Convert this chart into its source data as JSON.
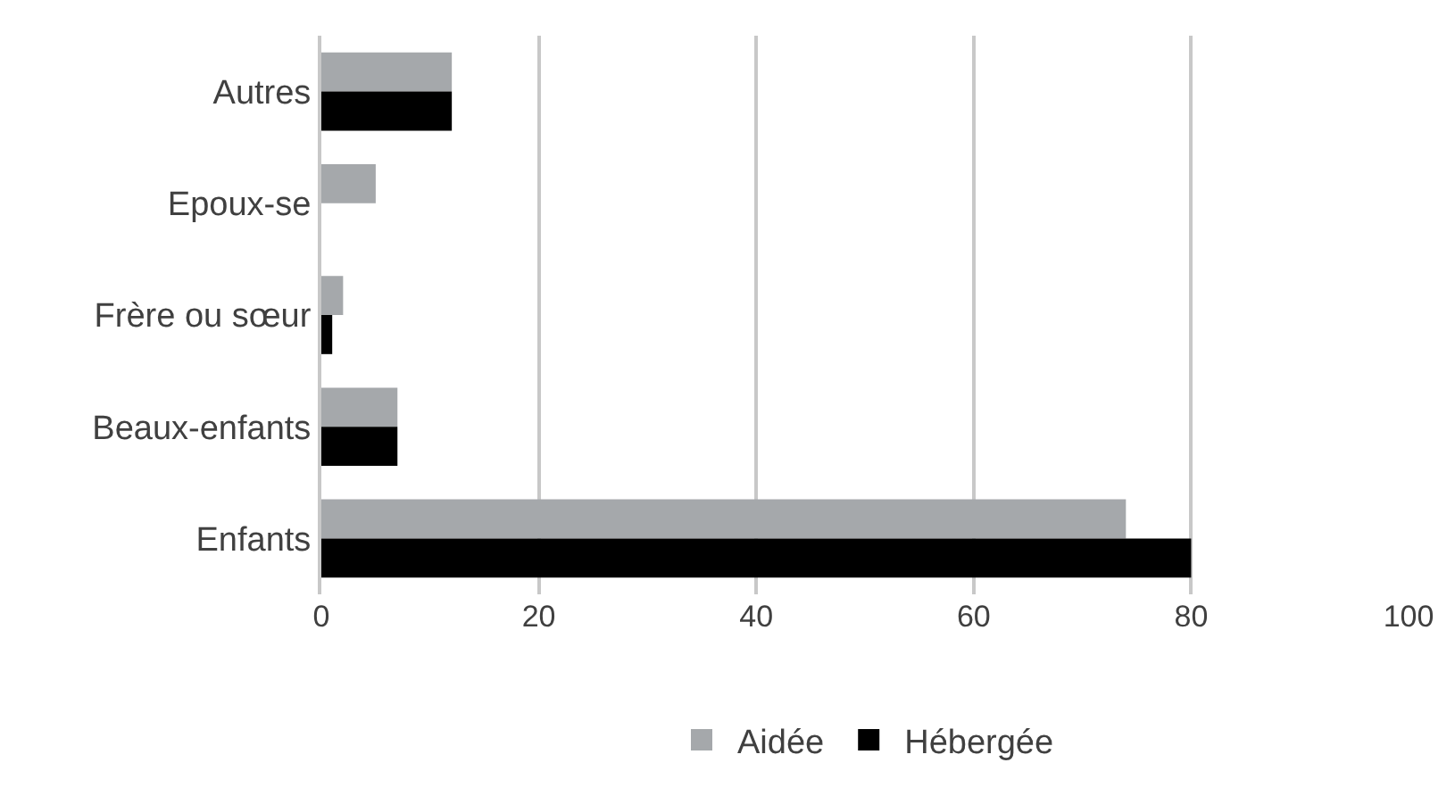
{
  "chart_data": {
    "type": "bar",
    "orientation": "horizontal",
    "categories": [
      "Autres",
      "Epoux-se",
      "Frère ou sœur",
      "Beaux-enfants",
      "Enfants"
    ],
    "series": [
      {
        "name": "Aidée",
        "color": "#a5a8ab",
        "values": [
          12,
          5,
          2,
          7,
          74
        ]
      },
      {
        "name": "Hébergée",
        "color": "#000000",
        "values": [
          12,
          0,
          1,
          7,
          80
        ]
      }
    ],
    "xlim": [
      0,
      100
    ],
    "xticks": [
      0,
      20,
      40,
      60,
      80,
      100
    ],
    "grid": "x",
    "legend": "bottom"
  }
}
